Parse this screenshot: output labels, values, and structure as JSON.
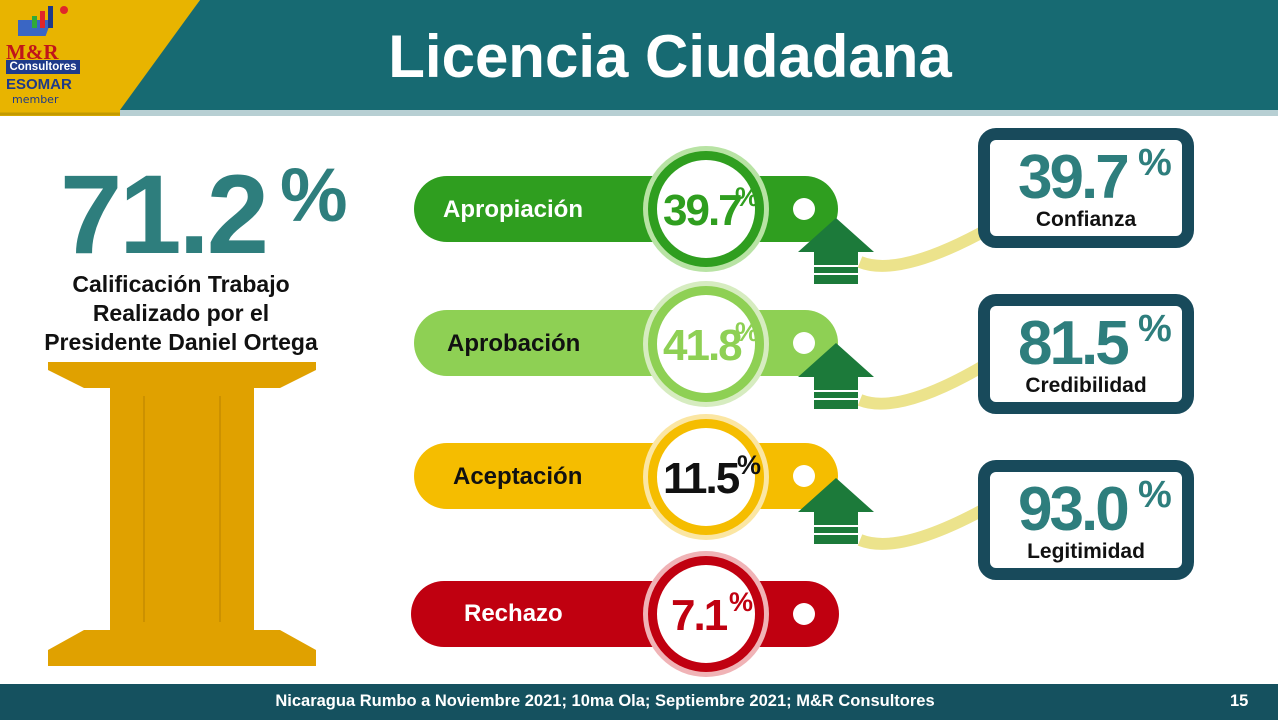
{
  "header": {
    "title": "Licencia Ciudadana",
    "logo": {
      "name": "M&R",
      "sub": "Consultores",
      "esomar": "ESOMAR",
      "member": "member"
    }
  },
  "main_stat": {
    "value": "71.2",
    "pct": "%",
    "label_lines": [
      "Calificación Trabajo",
      "Realizado por el",
      "Presidente Daniel Ortega"
    ]
  },
  "levels": [
    {
      "label": "Apropiación",
      "value": "39.7",
      "pct": "%",
      "color": "#2f9e1f",
      "text_color": "#2f9e1f"
    },
    {
      "label": "Aprobación",
      "value": "41.8",
      "pct": "%",
      "color": "#8ed054",
      "text_color": "#8ed054"
    },
    {
      "label": "Aceptación",
      "value": "11.5",
      "pct": "%",
      "color": "#f5bd00",
      "text_color": "#111111"
    },
    {
      "label": "Rechazo",
      "value": "7.1",
      "pct": "%",
      "color": "#c00010",
      "text_color": "#c00010"
    }
  ],
  "indicators": [
    {
      "value": "39.7",
      "pct": "%",
      "label": "Confianza"
    },
    {
      "value": "81.5",
      "pct": "%",
      "label": "Credibilidad"
    },
    {
      "value": "93.0",
      "pct": "%",
      "label": "Legitimidad"
    }
  ],
  "footer": {
    "text": "Nicaragua Rumbo a Noviembre 2021; 10ma Ola; Septiembre 2021; M&R Consultores",
    "page": "15"
  },
  "colors": {
    "header_teal": "#176a72",
    "header_gold": "#e8b400",
    "footer": "#15515f",
    "arrow_green": "#1c7a3a",
    "connector": "#ece38c",
    "box_border": "#184a5b",
    "stat_teal": "#2e7e7d",
    "pillar": "#e0a100"
  }
}
